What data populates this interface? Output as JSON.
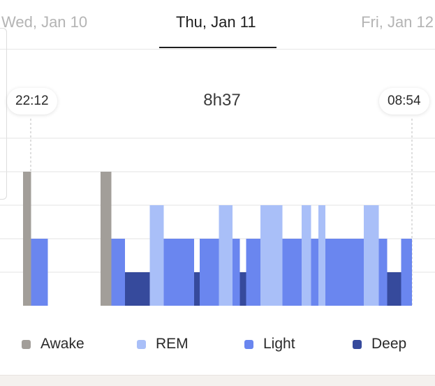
{
  "date_nav": {
    "prev": "Wed, Jan 10",
    "current": "Thu, Jan 11",
    "next": "Fri, Jan 12"
  },
  "sleep": {
    "start_time": "22:12",
    "end_time": "08:54",
    "duration": "8h37"
  },
  "colors": {
    "awake": "#a29e99",
    "rem": "#a9bff8",
    "light": "#6a86ef",
    "deep": "#364a9c",
    "gridline": "#e3e3e3",
    "marker_line": "#c8c8c8"
  },
  "legend": [
    {
      "label": "Awake",
      "color": "#a29e99"
    },
    {
      "label": "REM",
      "color": "#a9bff8"
    },
    {
      "label": "Light",
      "color": "#6a86ef"
    },
    {
      "label": "Deep",
      "color": "#364a9c"
    }
  ],
  "chart_data": {
    "type": "bar",
    "title": "",
    "levels_top_to_bottom": [
      "Awake",
      "REM",
      "Light",
      "Deep"
    ],
    "x_start": "22:12",
    "x_end": "08:54",
    "segments": [
      {
        "stage": "Awake",
        "start": 0.0,
        "end": 0.021
      },
      {
        "stage": "Light",
        "start": 0.021,
        "end": 0.064
      },
      {
        "stage": "Awake",
        "start": 0.199,
        "end": 0.227
      },
      {
        "stage": "Light",
        "start": 0.227,
        "end": 0.262
      },
      {
        "stage": "Deep",
        "start": 0.262,
        "end": 0.326
      },
      {
        "stage": "REM",
        "start": 0.326,
        "end": 0.362
      },
      {
        "stage": "Light",
        "start": 0.362,
        "end": 0.44
      },
      {
        "stage": "Deep",
        "start": 0.44,
        "end": 0.454
      },
      {
        "stage": "Light",
        "start": 0.454,
        "end": 0.504
      },
      {
        "stage": "REM",
        "start": 0.504,
        "end": 0.539
      },
      {
        "stage": "Light",
        "start": 0.539,
        "end": 0.557
      },
      {
        "stage": "Deep",
        "start": 0.557,
        "end": 0.574
      },
      {
        "stage": "Light",
        "start": 0.574,
        "end": 0.61
      },
      {
        "stage": "REM",
        "start": 0.61,
        "end": 0.667
      },
      {
        "stage": "Light",
        "start": 0.667,
        "end": 0.716
      },
      {
        "stage": "REM",
        "start": 0.716,
        "end": 0.741
      },
      {
        "stage": "Light",
        "start": 0.741,
        "end": 0.759
      },
      {
        "stage": "REM",
        "start": 0.759,
        "end": 0.777
      },
      {
        "stage": "Light",
        "start": 0.777,
        "end": 0.876
      },
      {
        "stage": "REM",
        "start": 0.876,
        "end": 0.915
      },
      {
        "stage": "Light",
        "start": 0.915,
        "end": 0.936
      },
      {
        "stage": "Deep",
        "start": 0.936,
        "end": 0.972
      },
      {
        "stage": "Light",
        "start": 0.972,
        "end": 1.0
      }
    ]
  }
}
